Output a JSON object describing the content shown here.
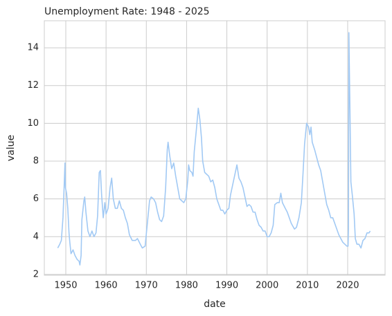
{
  "chart_data": {
    "type": "line",
    "title": "Unemployment Rate: 1948 - 2025",
    "xlabel": "date",
    "ylabel": "value",
    "grid": true,
    "color": "#a1c9f4",
    "xlim": [
      1944.67,
      2029.29
    ],
    "xticks": [
      1950,
      1960,
      1970,
      1980,
      1990,
      2000,
      2010,
      2020
    ],
    "ylim": [
      1.96,
      15.43
    ],
    "yticks": [
      2,
      4,
      6,
      8,
      10,
      12,
      14
    ],
    "x": [
      1948.0,
      1948.5,
      1948.9,
      1949.3,
      1949.6,
      1949.8,
      1949.9,
      1950.2,
      1950.5,
      1950.8,
      1951.0,
      1951.3,
      1951.8,
      1952.3,
      1952.8,
      1953.3,
      1953.5,
      1953.8,
      1954.0,
      1954.5,
      1954.7,
      1955.0,
      1955.5,
      1956.0,
      1956.5,
      1957.0,
      1957.5,
      1957.9,
      1958.3,
      1958.6,
      1958.9,
      1959.3,
      1959.7,
      1960.0,
      1960.5,
      1961.0,
      1961.4,
      1961.8,
      1962.3,
      1962.8,
      1963.3,
      1963.8,
      1964.3,
      1964.8,
      1965.3,
      1965.8,
      1966.5,
      1967.3,
      1967.8,
      1968.5,
      1969.0,
      1969.7,
      1970.3,
      1970.8,
      1971.2,
      1971.8,
      1972.3,
      1972.8,
      1973.3,
      1973.8,
      1974.3,
      1974.8,
      1975.2,
      1975.4,
      1975.8,
      1976.3,
      1976.8,
      1977.3,
      1977.8,
      1978.3,
      1978.8,
      1979.3,
      1979.8,
      1980.3,
      1980.5,
      1980.8,
      1981.3,
      1981.6,
      1981.9,
      1982.4,
      1982.9,
      1983.3,
      1983.7,
      1984.0,
      1984.5,
      1985.0,
      1985.5,
      1986.0,
      1986.5,
      1987.0,
      1987.5,
      1988.0,
      1988.5,
      1989.0,
      1989.5,
      1990.0,
      1990.5,
      1990.9,
      1991.5,
      1992.0,
      1992.5,
      1993.0,
      1993.5,
      1994.0,
      1994.5,
      1995.0,
      1995.5,
      1996.0,
      1996.5,
      1997.0,
      1997.5,
      1998.0,
      1998.5,
      1999.0,
      1999.5,
      2000.0,
      2000.5,
      2001.0,
      2001.5,
      2001.9,
      2002.5,
      2003.0,
      2003.4,
      2003.8,
      2004.5,
      2005.0,
      2005.5,
      2006.0,
      2006.8,
      2007.3,
      2007.9,
      2008.5,
      2008.9,
      2009.3,
      2009.8,
      2010.3,
      2010.6,
      2010.9,
      2011.2,
      2011.8,
      2012.3,
      2012.8,
      2013.3,
      2013.8,
      2014.3,
      2014.8,
      2015.3,
      2015.8,
      2016.3,
      2016.8,
      2017.3,
      2017.8,
      2018.3,
      2018.8,
      2019.3,
      2019.8,
      2020.1,
      2020.2,
      2020.3,
      2020.4,
      2020.6,
      2020.8,
      2021.2,
      2021.6,
      2021.9,
      2022.3,
      2022.8,
      2023.3,
      2023.8,
      2024.3,
      2024.8,
      2025.3,
      2025.6
    ],
    "values": [
      3.4,
      3.6,
      3.8,
      5.0,
      6.7,
      7.9,
      6.6,
      6.3,
      5.5,
      4.2,
      3.7,
      3.1,
      3.3,
      3.0,
      2.8,
      2.7,
      2.5,
      3.0,
      4.9,
      5.9,
      6.1,
      5.3,
      4.3,
      4.0,
      4.3,
      4.0,
      4.2,
      5.1,
      7.4,
      7.5,
      6.2,
      5.0,
      5.8,
      5.2,
      5.5,
      6.6,
      7.1,
      6.0,
      5.5,
      5.5,
      5.9,
      5.5,
      5.4,
      5.0,
      4.7,
      4.1,
      3.8,
      3.8,
      3.9,
      3.6,
      3.4,
      3.5,
      4.8,
      5.9,
      6.1,
      6.0,
      5.8,
      5.3,
      4.9,
      4.8,
      5.1,
      6.6,
      8.6,
      9.0,
      8.3,
      7.6,
      7.9,
      7.2,
      6.6,
      6.0,
      5.9,
      5.8,
      6.0,
      7.0,
      7.8,
      7.5,
      7.4,
      7.2,
      8.5,
      9.6,
      10.8,
      10.2,
      9.2,
      8.0,
      7.4,
      7.3,
      7.2,
      6.9,
      7.0,
      6.6,
      6.0,
      5.7,
      5.4,
      5.4,
      5.2,
      5.4,
      5.5,
      6.2,
      6.8,
      7.3,
      7.8,
      7.1,
      6.9,
      6.6,
      6.1,
      5.6,
      5.7,
      5.6,
      5.3,
      5.3,
      4.9,
      4.6,
      4.5,
      4.3,
      4.3,
      4.0,
      4.0,
      4.2,
      4.6,
      5.7,
      5.8,
      5.8,
      6.3,
      5.8,
      5.5,
      5.3,
      5.0,
      4.7,
      4.4,
      4.5,
      5.0,
      5.8,
      7.3,
      8.9,
      10.0,
      9.8,
      9.4,
      9.8,
      9.0,
      8.6,
      8.2,
      7.8,
      7.5,
      6.9,
      6.3,
      5.7,
      5.4,
      5.0,
      5.0,
      4.7,
      4.4,
      4.1,
      3.9,
      3.7,
      3.6,
      3.5,
      3.5,
      4.4,
      14.8,
      13.2,
      10.2,
      6.9,
      6.1,
      5.2,
      3.9,
      3.6,
      3.6,
      3.4,
      3.8,
      3.9,
      4.2,
      4.2,
      4.3
    ]
  }
}
